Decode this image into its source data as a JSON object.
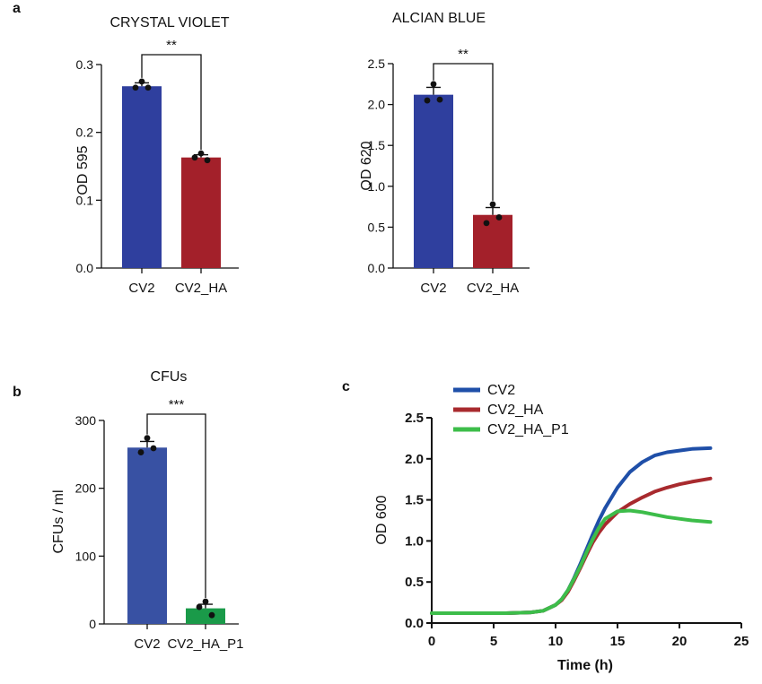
{
  "panel_letters": {
    "a": "a",
    "b": "b",
    "c": "c"
  },
  "chart_data": [
    {
      "id": "crystal_violet",
      "type": "bar",
      "title": "CRYSTAL VIOLET",
      "ylabel": "OD 595",
      "ylim": [
        0,
        0.3
      ],
      "yticks": [
        "0.0",
        "0.1",
        "0.2",
        "0.3"
      ],
      "categories": [
        "CV2",
        "CV2_HA"
      ],
      "values": [
        0.268,
        0.163
      ],
      "errors": [
        0.005,
        0.004
      ],
      "points": [
        [
          0.275,
          0.266,
          0.266
        ],
        [
          0.169,
          0.163,
          0.159
        ]
      ],
      "colors": [
        "#2f3f9e",
        "#a3202a"
      ],
      "significance": "**"
    },
    {
      "id": "alcian_blue",
      "type": "bar",
      "title": "ALCIAN BLUE",
      "ylabel": "OD 620",
      "ylim": [
        0,
        2.5
      ],
      "yticks": [
        "0.0",
        "0.5",
        "1.0",
        "1.5",
        "2.0",
        "2.5"
      ],
      "categories": [
        "CV2",
        "CV2_HA"
      ],
      "values": [
        2.12,
        0.65
      ],
      "errors": [
        0.09,
        0.09
      ],
      "points": [
        [
          2.25,
          2.05,
          2.06
        ],
        [
          0.78,
          0.55,
          0.62
        ]
      ],
      "colors": [
        "#2f3f9e",
        "#a3202a"
      ],
      "significance": "**"
    },
    {
      "id": "cfus",
      "type": "bar",
      "title": "CFUs",
      "ylabel": "CFUs / ml",
      "ylim": [
        0,
        300
      ],
      "yticks": [
        "0",
        "100",
        "200",
        "300"
      ],
      "categories": [
        "CV2",
        "CV2_HA_P1"
      ],
      "values": [
        260,
        23
      ],
      "errors": [
        9,
        6
      ],
      "points": [
        [
          274,
          253,
          259
        ],
        [
          33,
          25,
          13
        ]
      ],
      "colors": [
        "#3851a3",
        "#1a9a49"
      ],
      "significance": "***"
    },
    {
      "id": "growth",
      "type": "line",
      "xlabel": "Time (h)",
      "ylabel": "OD 600",
      "xlim": [
        0,
        25
      ],
      "ylim": [
        0,
        2.5
      ],
      "xticks": [
        "0",
        "5",
        "10",
        "15",
        "20",
        "25"
      ],
      "yticks": [
        "0.0",
        "0.5",
        "1.0",
        "1.5",
        "2.0",
        "2.5"
      ],
      "legend_position": "top-left",
      "series": [
        {
          "name": "CV2",
          "color": "#1f4fa8",
          "x": [
            0,
            2,
            4,
            6,
            8,
            9,
            10,
            10.5,
            11,
            11.5,
            12,
            12.5,
            13,
            13.5,
            14,
            15,
            16,
            17,
            18,
            19,
            20,
            21,
            22.5
          ],
          "y": [
            0.12,
            0.12,
            0.12,
            0.12,
            0.13,
            0.15,
            0.22,
            0.29,
            0.4,
            0.55,
            0.72,
            0.9,
            1.08,
            1.25,
            1.4,
            1.65,
            1.84,
            1.96,
            2.04,
            2.08,
            2.1,
            2.12,
            2.13
          ]
        },
        {
          "name": "CV2_HA",
          "color": "#a82a2e",
          "x": [
            0,
            2,
            4,
            6,
            8,
            9,
            10,
            10.5,
            11,
            11.5,
            12,
            12.5,
            13,
            13.5,
            14,
            15,
            16,
            17,
            18,
            19,
            20,
            21,
            22.5
          ],
          "y": [
            0.12,
            0.12,
            0.12,
            0.12,
            0.13,
            0.15,
            0.22,
            0.28,
            0.38,
            0.52,
            0.67,
            0.83,
            0.98,
            1.1,
            1.2,
            1.35,
            1.45,
            1.53,
            1.6,
            1.65,
            1.69,
            1.72,
            1.76
          ]
        },
        {
          "name": "CV2_HA_P1",
          "color": "#3dbd4a",
          "x": [
            0,
            2,
            4,
            6,
            8,
            9,
            10,
            10.5,
            11,
            11.5,
            12,
            12.5,
            13,
            13.5,
            14,
            15,
            16,
            17,
            18,
            19,
            20,
            21,
            22.5
          ],
          "y": [
            0.12,
            0.12,
            0.12,
            0.12,
            0.13,
            0.15,
            0.22,
            0.29,
            0.4,
            0.54,
            0.69,
            0.86,
            1.02,
            1.16,
            1.27,
            1.36,
            1.37,
            1.35,
            1.32,
            1.29,
            1.27,
            1.25,
            1.23
          ]
        }
      ]
    }
  ]
}
